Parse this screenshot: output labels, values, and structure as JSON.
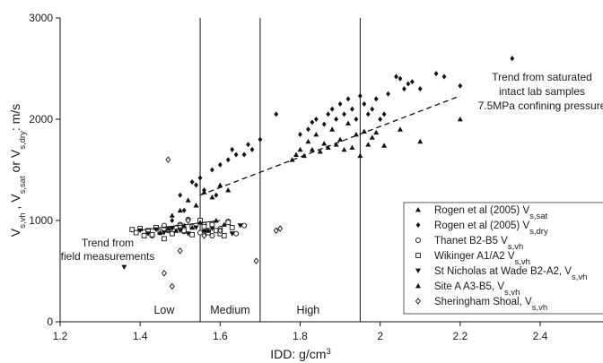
{
  "chart_data": {
    "type": "scatter",
    "title": "",
    "xlabel": {
      "base": "IDD: g/cm",
      "sup": "3"
    },
    "ylabel": [
      {
        "t": "V"
      },
      {
        "t": "s,vh",
        "sub": true
      },
      {
        "t": " , V"
      },
      {
        "t": "s,sat",
        "sub": true
      },
      {
        "t": "  or V"
      },
      {
        "t": "s,dry",
        "sub": true
      },
      {
        "t": ": m/s"
      }
    ],
    "xlim": [
      1.2,
      2.4
    ],
    "ylim": [
      0,
      3000
    ],
    "xticks": [
      "1.2",
      "1.4",
      "1.6",
      "1.8",
      "2",
      "2.2",
      "2.4"
    ],
    "yticks": [
      "0",
      "1000",
      "2000",
      "3000"
    ],
    "grid": false,
    "vlines": [
      1.55,
      1.7,
      1.95
    ],
    "zones": [
      {
        "label": "Low",
        "x": 1.46
      },
      {
        "label": "Medium",
        "x": 1.625
      },
      {
        "label": "High",
        "x": 1.82
      }
    ],
    "trend_lab": {
      "x": [
        1.55,
        2.2
      ],
      "y": [
        1250,
        2230
      ]
    },
    "trend_field": {
      "x": [
        1.4,
        1.6
      ],
      "y": [
        905,
        1000
      ]
    },
    "annotations": {
      "lab": [
        "Trend from saturated",
        "intact lab samples",
        "7.5MPa confining pressure"
      ],
      "field": [
        "Trend from",
        "field measurements"
      ]
    },
    "legend_position": "bottom-right",
    "series": [
      {
        "name": [
          {
            "t": "Rogen et al (2005) V"
          },
          {
            "t": "s,sat",
            "sub": true
          }
        ],
        "marker": "triangle-up",
        "x": [
          1.48,
          1.5,
          1.52,
          1.54,
          1.56,
          1.58,
          1.6,
          1.62,
          1.78,
          1.79,
          1.8,
          1.81,
          1.82,
          1.83,
          1.84,
          1.85,
          1.86,
          1.87,
          1.88,
          1.89,
          1.9,
          1.91,
          1.92,
          1.93,
          1.94,
          1.95,
          1.96,
          1.97,
          1.98,
          1.99,
          2.01,
          2.05,
          2.1,
          2.2
        ],
        "y": [
          1050,
          1100,
          1200,
          1150,
          1280,
          1230,
          1350,
          1300,
          1600,
          1650,
          1700,
          1640,
          1780,
          1700,
          1850,
          1680,
          1760,
          1720,
          1900,
          1750,
          1800,
          1700,
          1960,
          1720,
          1850,
          1640,
          1880,
          1750,
          1820,
          1870,
          1740,
          1900,
          1780,
          2000
        ]
      },
      {
        "name": [
          {
            "t": "Rogen et al (2005) V"
          },
          {
            "t": "s,dry",
            "sub": true
          }
        ],
        "marker": "diamond",
        "x": [
          1.48,
          1.5,
          1.51,
          1.53,
          1.54,
          1.55,
          1.56,
          1.58,
          1.59,
          1.6,
          1.62,
          1.63,
          1.64,
          1.66,
          1.67,
          1.68,
          1.7,
          1.74,
          1.8,
          1.82,
          1.83,
          1.84,
          1.86,
          1.87,
          1.88,
          1.89,
          1.9,
          1.91,
          1.92,
          1.93,
          1.94,
          1.95,
          1.96,
          1.97,
          1.98,
          1.99,
          2.0,
          2.01,
          2.02,
          2.04,
          2.05,
          2.06,
          2.07,
          2.08,
          2.1,
          2.14,
          2.16,
          2.2,
          2.33
        ],
        "y": [
          1000,
          1250,
          1100,
          1380,
          1350,
          1420,
          1300,
          1500,
          1250,
          1550,
          1600,
          1700,
          1650,
          1650,
          1750,
          1700,
          1800,
          2050,
          1850,
          1900,
          1970,
          2000,
          1950,
          2050,
          2100,
          2000,
          2150,
          2050,
          2200,
          2100,
          2000,
          2230,
          2150,
          2050,
          2100,
          2200,
          2000,
          2050,
          2250,
          2420,
          2400,
          2300,
          2350,
          2370,
          2300,
          2450,
          2420,
          2330,
          2600
        ]
      },
      {
        "name": [
          {
            "t": "Thanet B2-B5 V"
          },
          {
            "t": "s,vh",
            "sub": true
          }
        ],
        "marker": "circle",
        "x": [
          1.43,
          1.45,
          1.46,
          1.47,
          1.48,
          1.49,
          1.5,
          1.51,
          1.52,
          1.53,
          1.55,
          1.56,
          1.57,
          1.58,
          1.6,
          1.62,
          1.64,
          1.66
        ],
        "y": [
          850,
          880,
          950,
          900,
          870,
          930,
          960,
          890,
          1010,
          940,
          880,
          960,
          900,
          850,
          920,
          990,
          870,
          950
        ]
      },
      {
        "name": [
          {
            "t": "Wikinger A1/A2 V"
          },
          {
            "t": "s,vh",
            "sub": true
          }
        ],
        "marker": "square",
        "x": [
          1.38,
          1.39,
          1.4,
          1.41,
          1.42,
          1.43,
          1.44,
          1.45,
          1.46,
          1.47,
          1.48,
          1.5,
          1.51,
          1.53,
          1.55,
          1.56,
          1.57,
          1.58,
          1.59,
          1.6,
          1.61,
          1.62,
          1.63
        ],
        "y": [
          910,
          880,
          920,
          850,
          900,
          860,
          930,
          890,
          820,
          910,
          870,
          950,
          900,
          860,
          1000,
          940,
          880,
          960,
          900,
          870,
          850,
          980,
          930
        ]
      },
      {
        "name": [
          {
            "t": "St Nicholas at Wade B2-A2, V"
          },
          {
            "t": "s,vh",
            "sub": true
          }
        ],
        "marker": "triangle-down",
        "x": [
          1.36,
          1.4,
          1.42,
          1.44,
          1.46,
          1.48,
          1.5,
          1.52,
          1.54,
          1.56,
          1.58,
          1.6,
          1.63,
          1.65
        ],
        "y": [
          540,
          900,
          870,
          910,
          880,
          920,
          900,
          870,
          930,
          890,
          920,
          900,
          870,
          950
        ]
      },
      {
        "name": [
          {
            "t": "Site A A3-B5, V"
          },
          {
            "t": "s,vh",
            "sub": true
          }
        ],
        "marker": "triangle-up",
        "x": [
          1.45,
          1.47,
          1.49,
          1.51,
          1.53,
          1.55,
          1.57,
          1.59,
          1.61
        ],
        "y": [
          880,
          920,
          900,
          950,
          930,
          980,
          900,
          1000,
          960
        ]
      },
      {
        "name": [
          {
            "t": "Sheringham Shoal, V"
          },
          {
            "t": "s,vh",
            "sub": true
          }
        ],
        "marker": "diamond-open",
        "x": [
          1.46,
          1.47,
          1.48,
          1.5,
          1.52,
          1.56,
          1.6,
          1.69,
          1.74,
          1.75
        ],
        "y": [
          480,
          1600,
          350,
          700,
          1000,
          850,
          900,
          600,
          900,
          920
        ]
      }
    ]
  }
}
